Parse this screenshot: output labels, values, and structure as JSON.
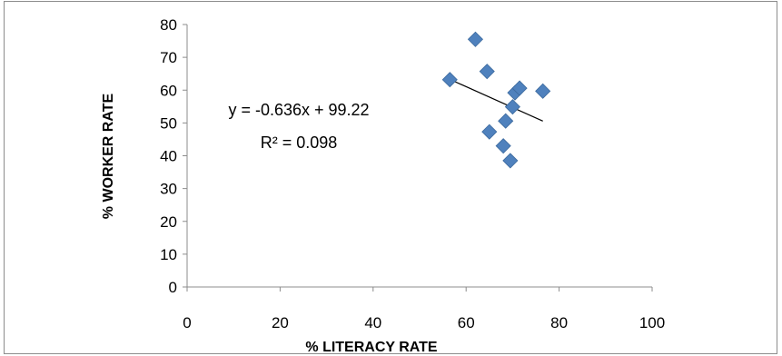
{
  "chart_data": {
    "type": "scatter",
    "title": "",
    "xlabel": "% LITERACY RATE",
    "ylabel": "% WORKER RATE",
    "xlim": [
      0,
      100
    ],
    "ylim": [
      0,
      80
    ],
    "x_ticks": [
      "0",
      "20",
      "40",
      "60",
      "80",
      "100"
    ],
    "y_ticks": [
      "0",
      "10",
      "20",
      "30",
      "40",
      "50",
      "60",
      "70",
      "80"
    ],
    "grid": false,
    "legend": "none",
    "marker": "diamond",
    "marker_color": "#4f81bd",
    "series": [
      {
        "points": [
          {
            "x": 56.5,
            "y": 63.2
          },
          {
            "x": 62.0,
            "y": 75.5
          },
          {
            "x": 64.5,
            "y": 65.7
          },
          {
            "x": 65.0,
            "y": 47.3
          },
          {
            "x": 68.0,
            "y": 43.0
          },
          {
            "x": 68.5,
            "y": 50.6
          },
          {
            "x": 69.5,
            "y": 38.5
          },
          {
            "x": 70.0,
            "y": 54.9
          },
          {
            "x": 70.5,
            "y": 59.2
          },
          {
            "x": 71.5,
            "y": 60.6
          },
          {
            "x": 76.5,
            "y": 59.7
          }
        ]
      }
    ],
    "trendline": {
      "slope": -0.636,
      "intercept": 99.22,
      "x_range": [
        56.5,
        76.5
      ],
      "color": "#000000",
      "equation_label": "y = -0.636x + 99.22",
      "r2_label": "R² = 0.098"
    }
  }
}
